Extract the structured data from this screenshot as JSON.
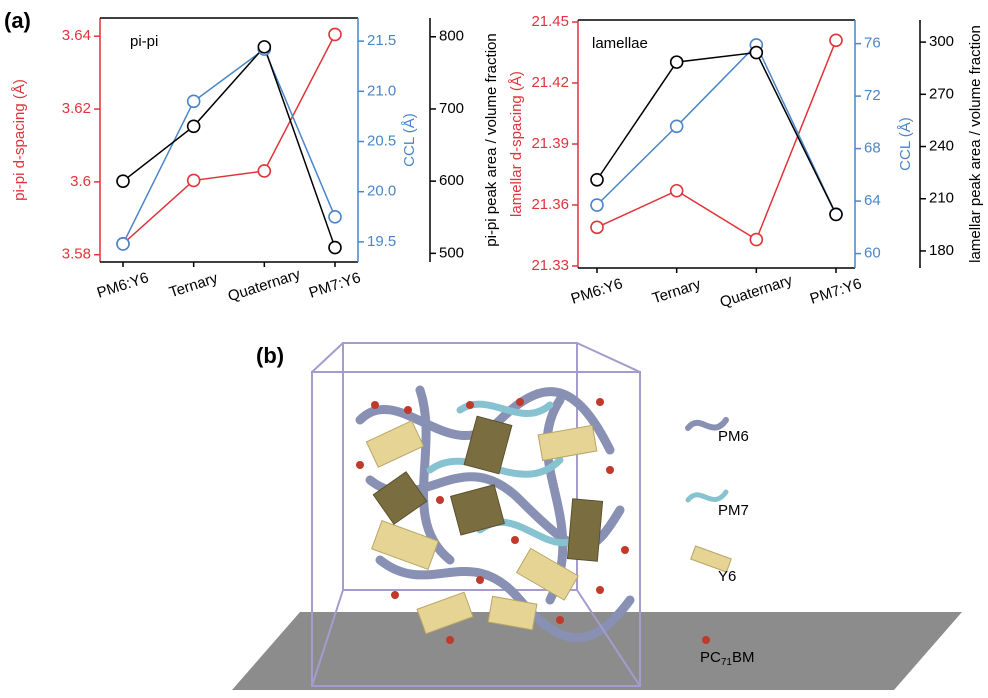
{
  "panels": {
    "a": "(a)",
    "b": "(b)"
  },
  "chart_data": [
    {
      "type": "line",
      "annotation": "pi-pi",
      "categories": [
        "PM6:Y6",
        "Ternary",
        "Quaternary",
        "PM7:Y6"
      ],
      "ylabel": "pi-pi d-spacing (Å)",
      "y2label": "CCL (Å)",
      "y3label": "pi-pi peak area / volume fraction",
      "ylim": [
        3.578,
        3.645
      ],
      "yticks": [
        3.58,
        3.6,
        3.62,
        3.64
      ],
      "y2lim": [
        19.3,
        21.73
      ],
      "y2ticks": [
        19.5,
        {
          "value": 20,
          "label": "20.0"
        },
        20.5,
        {
          "value": 21,
          "label": "21.0"
        },
        21.5
      ],
      "y3lim": [
        488,
        826
      ],
      "y3ticks": [
        500,
        600,
        700,
        800
      ],
      "series": [
        {
          "color": "#e0343a",
          "axis": "y",
          "values": [
            3.583,
            3.6004,
            3.603,
            3.6405
          ]
        },
        {
          "color": "#4a86c8",
          "axis": "y2",
          "values": [
            19.48,
            20.9,
            21.42,
            19.75
          ]
        },
        {
          "color": "#000000",
          "axis": "y3",
          "values": [
            600,
            676,
            786,
            508
          ]
        }
      ]
    },
    {
      "type": "line",
      "annotation": "lamellae",
      "categories": [
        "PM6:Y6",
        "Ternary",
        "Quaternary",
        "PM7:Y6"
      ],
      "ylabel": "lamellar d-spacing (Å)",
      "y2label": "CCL (Å)",
      "y3label": "lamellar peak area / volume fraction",
      "ylim": [
        21.329,
        21.451
      ],
      "yticks": [
        21.33,
        21.36,
        21.39,
        21.42,
        21.45
      ],
      "y2lim": [
        58.9,
        77.8
      ],
      "y2ticks": [
        60,
        64,
        68,
        72,
        76
      ],
      "y3lim": [
        170.2,
        312.7
      ],
      "y3ticks": [
        180,
        210,
        240,
        270,
        300
      ],
      "series": [
        {
          "color": "#e0343a",
          "axis": "y",
          "values": [
            21.349,
            21.367,
            21.343,
            21.441
          ]
        },
        {
          "color": "#4a86c8",
          "axis": "y2",
          "values": [
            63.7,
            69.7,
            75.9,
            63.0
          ]
        },
        {
          "color": "#000000",
          "axis": "y3",
          "values": [
            220.9,
            288.5,
            294,
            201
          ]
        }
      ]
    }
  ],
  "illustration": {
    "legend": [
      "PM6",
      "PM7",
      "Y6"
    ],
    "sphere_legend": {
      "prefix": "PC",
      "subscript": "71",
      "suffix": "BM"
    }
  }
}
